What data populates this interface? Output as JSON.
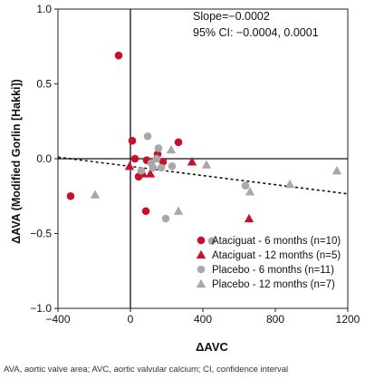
{
  "chart_data": {
    "type": "scatter",
    "xlabel": "ΔAVC",
    "ylabel": "ΔAVA (Modified Gorlin [Hakki])",
    "xlim": [
      -400,
      1200
    ],
    "ylim": [
      -1.0,
      1.0
    ],
    "x_ticks": [
      "−400",
      "0",
      "400",
      "800",
      "1200"
    ],
    "x_tick_values": [
      -400,
      0,
      400,
      800,
      1200
    ],
    "y_ticks": [
      "1.0",
      "0.5",
      "0.0",
      "−0.5",
      "−1.0"
    ],
    "y_tick_values": [
      1.0,
      0.5,
      0.0,
      -0.5,
      -1.0
    ],
    "annotation_lines": [
      "Slope=−0.0002",
      "95% CI: −0.0004, 0.0001"
    ],
    "regression": {
      "slope": -0.0002,
      "x_range": [
        -400,
        1200
      ],
      "y_range": [
        0.01,
        -0.235
      ]
    },
    "grid": false,
    "legend_position": "bottom-right",
    "series": [
      {
        "name": "Ataciguat - 6 months (n=10)",
        "marker": "circle",
        "color": "#c8102e",
        "points": [
          [
            -330,
            -0.25
          ],
          [
            -65,
            0.69
          ],
          [
            10,
            0.12
          ],
          [
            25,
            0.0
          ],
          [
            45,
            -0.12
          ],
          [
            85,
            -0.35
          ],
          [
            90,
            -0.01
          ],
          [
            150,
            0.03
          ],
          [
            180,
            -0.02
          ],
          [
            265,
            0.11
          ]
        ]
      },
      {
        "name": "Ataciguat - 12 months (n=5)",
        "marker": "triangle",
        "color": "#c8102e",
        "points": [
          [
            -5,
            -0.05
          ],
          [
            70,
            -0.1
          ],
          [
            110,
            -0.1
          ],
          [
            340,
            -0.02
          ],
          [
            655,
            -0.4
          ]
        ]
      },
      {
        "name": "Placebo - 6 months (n=11)",
        "marker": "circle",
        "color": "#a8a8a8",
        "points": [
          [
            60,
            -0.08
          ],
          [
            95,
            0.15
          ],
          [
            115,
            -0.03
          ],
          [
            125,
            -0.06
          ],
          [
            145,
            0.0
          ],
          [
            155,
            0.07
          ],
          [
            170,
            -0.06
          ],
          [
            195,
            -0.4
          ],
          [
            230,
            -0.05
          ],
          [
            450,
            -0.55
          ],
          [
            635,
            -0.18
          ]
        ]
      },
      {
        "name": "Placebo - 12 months (n=7)",
        "marker": "triangle",
        "color": "#a8a8a8",
        "points": [
          [
            -195,
            -0.24
          ],
          [
            225,
            0.06
          ],
          [
            265,
            -0.35
          ],
          [
            420,
            -0.04
          ],
          [
            660,
            -0.22
          ],
          [
            880,
            -0.17
          ],
          [
            1140,
            -0.08
          ]
        ]
      }
    ]
  },
  "footnote": "AVA, aortic valve area; AVC, aortic valvular calcium; CI, confidence interval"
}
